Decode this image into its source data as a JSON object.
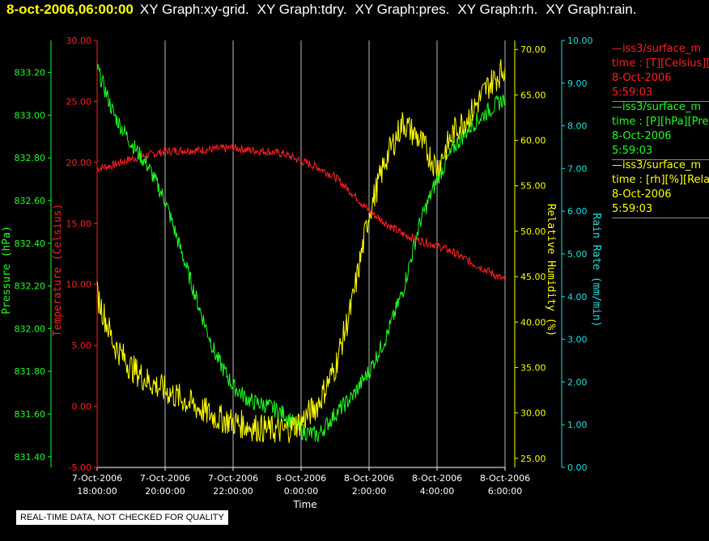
{
  "title_bar": {
    "date": "8-oct-2006,06:00:00",
    "menus": [
      "XY Graph:xy-grid.",
      "XY Graph:tdry.",
      "XY Graph:pres.",
      "XY Graph:rh.",
      "XY Graph:rain."
    ]
  },
  "legend": [
    {
      "line1": "—iss3/surface_m",
      "line2": "time : [T][Celsius][T",
      "line3": "8-Oct-2006",
      "line4": "5:59:03",
      "color": "#ff2020"
    },
    {
      "line1": "—iss3/surface_m",
      "line2": "time : [P][hPa][Pres",
      "line3": "8-Oct-2006",
      "line4": "5:59:03",
      "color": "#20ff20"
    },
    {
      "line1": "—iss3/surface_m",
      "line2": "time : [rh][%][Relativ",
      "line3": "8-Oct-2006",
      "line4": "5:59:03",
      "color": "#ffff00"
    }
  ],
  "disclaimer": "REAL-TIME DATA, NOT CHECKED FOR QUALITY",
  "chart_data": {
    "type": "line",
    "xlabel": "Time",
    "x_ticks": [
      [
        "7-Oct-2006",
        "18:00:00"
      ],
      [
        "7-Oct-2006",
        "20:00:00"
      ],
      [
        "7-Oct-2006",
        "22:00:00"
      ],
      [
        "8-Oct-2006",
        "0:00:00"
      ],
      [
        "8-Oct-2006",
        "2:00:00"
      ],
      [
        "8-Oct-2006",
        "4:00:00"
      ],
      [
        "8-Oct-2006",
        "6:00:00"
      ]
    ],
    "x_range_hours": [
      0,
      12
    ],
    "grid": "vertical",
    "axes": {
      "pressure": {
        "label": "Pressure (hPa)",
        "color": "#20ff20",
        "range": [
          831.35,
          833.35
        ],
        "ticks": [
          "831.40",
          "831.60",
          "831.80",
          "832.00",
          "832.20",
          "832.40",
          "832.60",
          "832.80",
          "833.00",
          "833.20"
        ]
      },
      "temperature": {
        "label": "Temperature (Celsius)",
        "color": "#ff2020",
        "range": [
          -5,
          30
        ],
        "ticks": [
          "-5.00",
          "0.00",
          "5.00",
          "10.00",
          "15.00",
          "20.00",
          "25.00",
          "30.00"
        ]
      },
      "rh": {
        "label": "Relative Humidity (%)",
        "color": "#ffff00",
        "range": [
          24,
          71
        ],
        "ticks": [
          "25.00",
          "30.00",
          "35.00",
          "40.00",
          "45.00",
          "50.00",
          "55.00",
          "60.00",
          "65.00",
          "70.00"
        ]
      },
      "rain": {
        "label": "Rain Rate (mm/min)",
        "color": "#20e0e0",
        "range": [
          0,
          10
        ],
        "ticks": [
          "0.00",
          "1.00",
          "2.00",
          "3.00",
          "4.00",
          "5.00",
          "6.00",
          "7.00",
          "8.00",
          "9.00",
          "10.00"
        ]
      }
    },
    "series": [
      {
        "axis": "temperature",
        "color": "#ff2020",
        "x": [
          0,
          0.5,
          1,
          1.5,
          2,
          2.5,
          3,
          3.5,
          4,
          4.5,
          5,
          5.5,
          6,
          6.5,
          7,
          7.5,
          8,
          8.5,
          9,
          9.5,
          10,
          10.5,
          11,
          11.5,
          12
        ],
        "y": [
          19.5,
          19.8,
          20.3,
          20.6,
          20.9,
          21,
          21,
          21.1,
          21.2,
          21,
          20.9,
          20.7,
          20.1,
          19.6,
          18.8,
          17.5,
          16,
          15,
          14.1,
          13.6,
          13.2,
          12.6,
          11.8,
          11.1,
          10.3
        ]
      },
      {
        "axis": "pressure",
        "color": "#20ff20",
        "x": [
          0,
          0.5,
          1,
          1.5,
          2,
          2.5,
          3,
          3.5,
          4,
          4.5,
          5,
          5.5,
          6,
          6.5,
          7,
          7.5,
          8,
          8.5,
          9,
          9.5,
          10,
          10.5,
          11,
          11.5,
          12
        ],
        "y": [
          833.22,
          833.0,
          832.87,
          832.76,
          832.6,
          832.35,
          832.1,
          831.87,
          831.73,
          831.66,
          831.64,
          831.6,
          831.52,
          831.5,
          831.6,
          831.68,
          831.8,
          831.96,
          832.18,
          832.5,
          832.7,
          832.85,
          832.95,
          833.02,
          833.08
        ]
      },
      {
        "axis": "rh",
        "color": "#ffff00",
        "x": [
          0,
          0.5,
          1,
          1.5,
          2,
          2.5,
          3,
          3.5,
          4,
          4.5,
          5,
          5.5,
          6,
          6.5,
          7,
          7.5,
          8,
          8.5,
          9,
          9.5,
          10,
          10.5,
          11,
          11.5,
          12
        ],
        "y": [
          43,
          37.5,
          35,
          33.5,
          32.5,
          31.5,
          30.5,
          29.5,
          29,
          28.5,
          28.2,
          28,
          29,
          31,
          35,
          42,
          52,
          58,
          62,
          60,
          57,
          61,
          63,
          66,
          68
        ]
      }
    ]
  }
}
